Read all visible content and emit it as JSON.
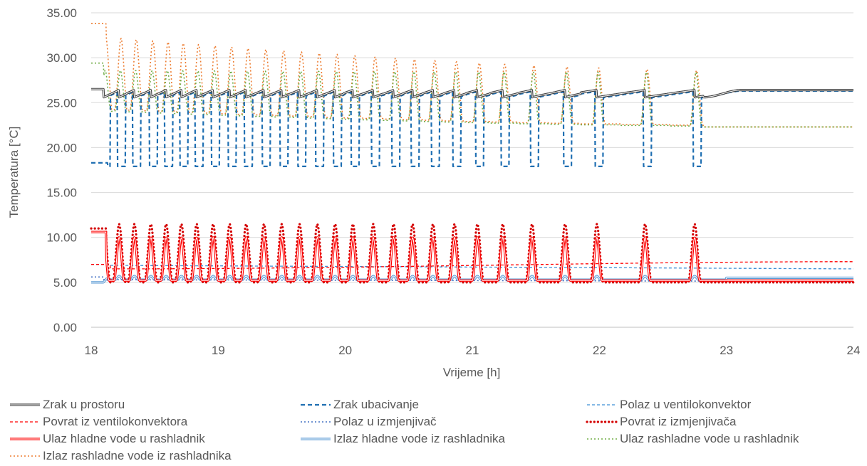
{
  "chart_data": {
    "type": "line",
    "title": "",
    "xlabel": "Vrijeme [h]",
    "ylabel": "Temperatura [°C]",
    "xlim": [
      18,
      24
    ],
    "ylim": [
      0,
      35
    ],
    "x_ticks": [
      "18",
      "19",
      "20",
      "21",
      "22",
      "23",
      "24"
    ],
    "y_ticks": [
      "0.00",
      "5.00",
      "10.00",
      "15.00",
      "20.00",
      "25.00",
      "30.00",
      "35.00"
    ],
    "grid": "horizontal",
    "legend_position": "bottom",
    "cycle_peaks_h": [
      18.1,
      18.22,
      18.34,
      18.47,
      18.59,
      18.71,
      18.83,
      18.96,
      19.09,
      19.22,
      19.36,
      19.5,
      19.64,
      19.78,
      19.92,
      20.06,
      20.22,
      20.38,
      20.53,
      20.69,
      20.86,
      21.04,
      21.24,
      21.47,
      21.73,
      21.98,
      22.36,
      22.75
    ],
    "series": [
      {
        "name": "Zrak u prostoru",
        "color": "#404040",
        "style": "double",
        "values": {
          "start": 26.5,
          "low": 25.6,
          "high": 26.4,
          "end": 26.4,
          "end_start": 22.85
        }
      },
      {
        "name": "Zrak ubacivanje",
        "color": "#1f6fb2",
        "style": "dashed",
        "values": {
          "start": 18.3,
          "high": 26.4,
          "min": 17.6,
          "end": 26.3
        }
      },
      {
        "name": "Polaz u ventilokonvektor",
        "color": "#3f90d6",
        "style": "dashed-thin",
        "values": {
          "value": 7.0,
          "end": 6.5
        }
      },
      {
        "name": "Povrat iz ventilokonvektora",
        "color": "#ff0000",
        "style": "dashed-thin",
        "values": {
          "start": 6.7,
          "end": 7.3
        }
      },
      {
        "name": "Polaz u izmjenjivač",
        "color": "#4472c4",
        "style": "dotted",
        "values": {
          "start": 5.6,
          "low": 5.2,
          "end": 5.1
        }
      },
      {
        "name": "Povrat iz izmjenjivača",
        "color": "#d40000",
        "style": "dotted-bold",
        "values": {
          "start": 11.0,
          "peak": 11.5,
          "low": 5.0,
          "end": 5.0
        }
      },
      {
        "name": "Ulaz hladne vode u rashladnik",
        "color": "#ff0000",
        "style": "double",
        "values": {
          "start": 10.6,
          "peak": 10.0,
          "low": 5.2,
          "end": 5.2
        }
      },
      {
        "name": "Izlaz hladne vode iz rashladnika",
        "color": "#5b9bd5",
        "style": "double",
        "values": {
          "start": 5.0,
          "end": 5.5
        }
      },
      {
        "name": "Ulaz rashladne vode u rashladnik",
        "color": "#70ad47",
        "style": "dotted",
        "values": {
          "start": 29.4,
          "peak": 28.6,
          "end": 22.3
        }
      },
      {
        "name": "Izlaz rashladne vode iz rashladnika",
        "color": "#ed7d31",
        "style": "dotted",
        "values": {
          "start": 33.8,
          "peak_first": 32.3,
          "peak_last": 28.6,
          "base_first": 24.3,
          "base_last": 22.5,
          "end": 22.3
        }
      }
    ]
  }
}
